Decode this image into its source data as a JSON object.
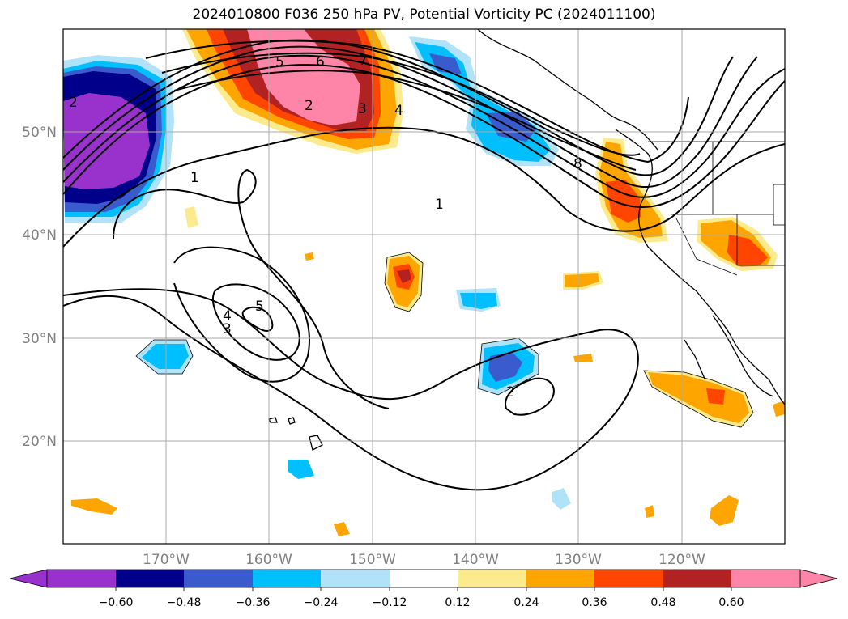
{
  "title": "2024010800 F036 250 hPa PV, Potential Vorticity PC (2024011100)",
  "latitude_labels": [
    "50°N",
    "40°N",
    "30°N",
    "20°N"
  ],
  "longitude_labels": [
    "170°W",
    "160°W",
    "150°W",
    "140°W",
    "130°W",
    "120°W"
  ],
  "contour_labels": [
    "1",
    "1",
    "2",
    "3",
    "4",
    "5",
    "6",
    "7",
    "2",
    "3",
    "4",
    "5",
    "8",
    "2"
  ],
  "colorbar": {
    "colors": [
      "#9932cc",
      "#00008b",
      "#3a5bcd",
      "#00bfff",
      "#b0e2fa",
      "#ffffff",
      "#fceb8c",
      "#ffa500",
      "#ff4500",
      "#b22222",
      "#ff85a8"
    ],
    "tick_labels": [
      "−0.60",
      "−0.48",
      "−0.36",
      "−0.24",
      "−0.12",
      "0.12",
      "0.24",
      "0.36",
      "0.48",
      "0.60"
    ]
  },
  "colors": {
    "purple": "#9932cc",
    "navy": "#00008b",
    "royal": "#3a5bcd",
    "deepsky": "#00bfff",
    "lightsky": "#b0e2fa",
    "yellow": "#fceb8c",
    "orange": "#ffa500",
    "redorange": "#ff4500",
    "firebrick": "#b22222",
    "pink": "#ff85a8"
  }
}
